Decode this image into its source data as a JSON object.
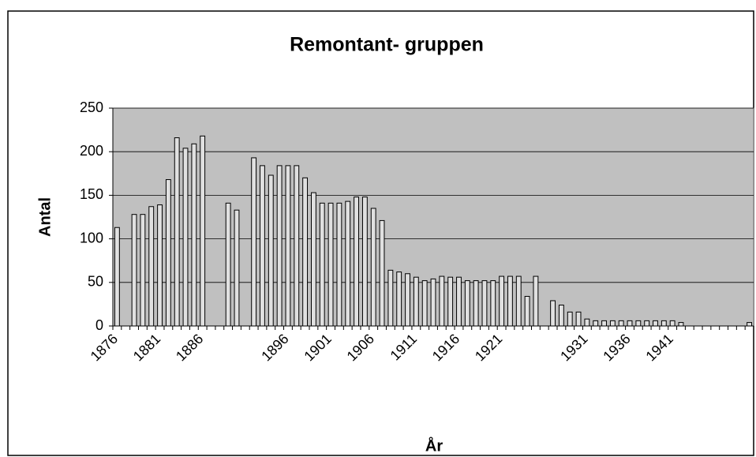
{
  "chart_data": {
    "type": "bar",
    "title": "Remontant- gruppen",
    "x_label": "År",
    "y_label": "Antal",
    "categories": [
      "1876",
      null,
      null,
      null,
      null,
      "1881",
      null,
      null,
      null,
      null,
      "1886",
      null,
      null,
      null,
      null,
      null,
      null,
      null,
      null,
      null,
      "1896",
      null,
      null,
      null,
      null,
      "1901",
      null,
      null,
      null,
      null,
      "1906",
      null,
      null,
      null,
      null,
      "1911",
      null,
      null,
      null,
      null,
      "1916",
      null,
      null,
      null,
      null,
      "1921",
      null,
      null,
      null,
      null,
      null,
      null,
      null,
      null,
      null,
      "1931",
      null,
      null,
      null,
      null,
      "1936",
      null,
      null,
      null,
      null,
      "1941",
      null,
      null,
      null,
      null,
      null,
      null,
      null,
      null,
      null
    ],
    "values": [
      113,
      null,
      128,
      128,
      137,
      139,
      168,
      216,
      204,
      209,
      218,
      null,
      null,
      141,
      133,
      null,
      193,
      184,
      173,
      184,
      184,
      184,
      170,
      153,
      141,
      141,
      141,
      143,
      148,
      148,
      135,
      121,
      64,
      62,
      60,
      56,
      52,
      54,
      57,
      56,
      56,
      52,
      52,
      52,
      52,
      57,
      57,
      57,
      34,
      57,
      null,
      29,
      24,
      16,
      16,
      8,
      6,
      6,
      6,
      6,
      6,
      6,
      6,
      6,
      6,
      6,
      4,
      null,
      null,
      null,
      null,
      null,
      null,
      null,
      4
    ],
    "color": "#e0e0e0",
    "plot_background": "#c0c0c0",
    "ylim": [
      0,
      250
    ],
    "yticks": [
      0,
      50,
      100,
      150,
      200,
      250
    ],
    "grid": true
  }
}
